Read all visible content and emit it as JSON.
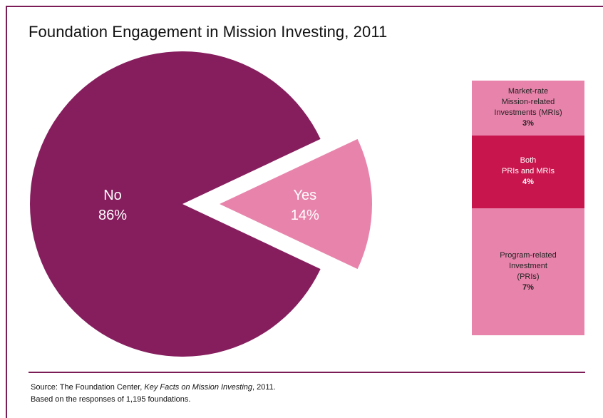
{
  "title": "Foundation Engagement in Mission Investing, 2011",
  "chart_data": {
    "type": "pie",
    "slices": [
      {
        "label": "No",
        "value": 86,
        "display": "86%",
        "color": "#861e5e",
        "text_color": "#ffffff"
      },
      {
        "label": "Yes",
        "value": 14,
        "display": "14%",
        "color": "#e884ab",
        "text_color": "#ffffff",
        "exploded": true
      }
    ],
    "breakdown": {
      "type": "stacked-bar",
      "of": "Yes",
      "segments": [
        {
          "label_lines": [
            "Market-rate",
            "Mission-related",
            "Investments (MRIs)"
          ],
          "value": 3,
          "display": "3%",
          "color": "#e884ab"
        },
        {
          "label_lines": [
            "Both",
            "PRIs and MRIs"
          ],
          "value": 4,
          "display": "4%",
          "color": "#c8154d"
        },
        {
          "label_lines": [
            "Program-related",
            "Investment",
            "(PRIs)"
          ],
          "value": 7,
          "display": "7%",
          "color": "#e884ab"
        }
      ]
    }
  },
  "source": {
    "line1_prefix": "Source: The Foundation Center, ",
    "line1_italic": "Key Facts on Mission Investing",
    "line1_suffix": ", 2011.",
    "line2": "Based on the responses of 1,195 foundations."
  },
  "colors": {
    "frame": "#7b1c57"
  }
}
